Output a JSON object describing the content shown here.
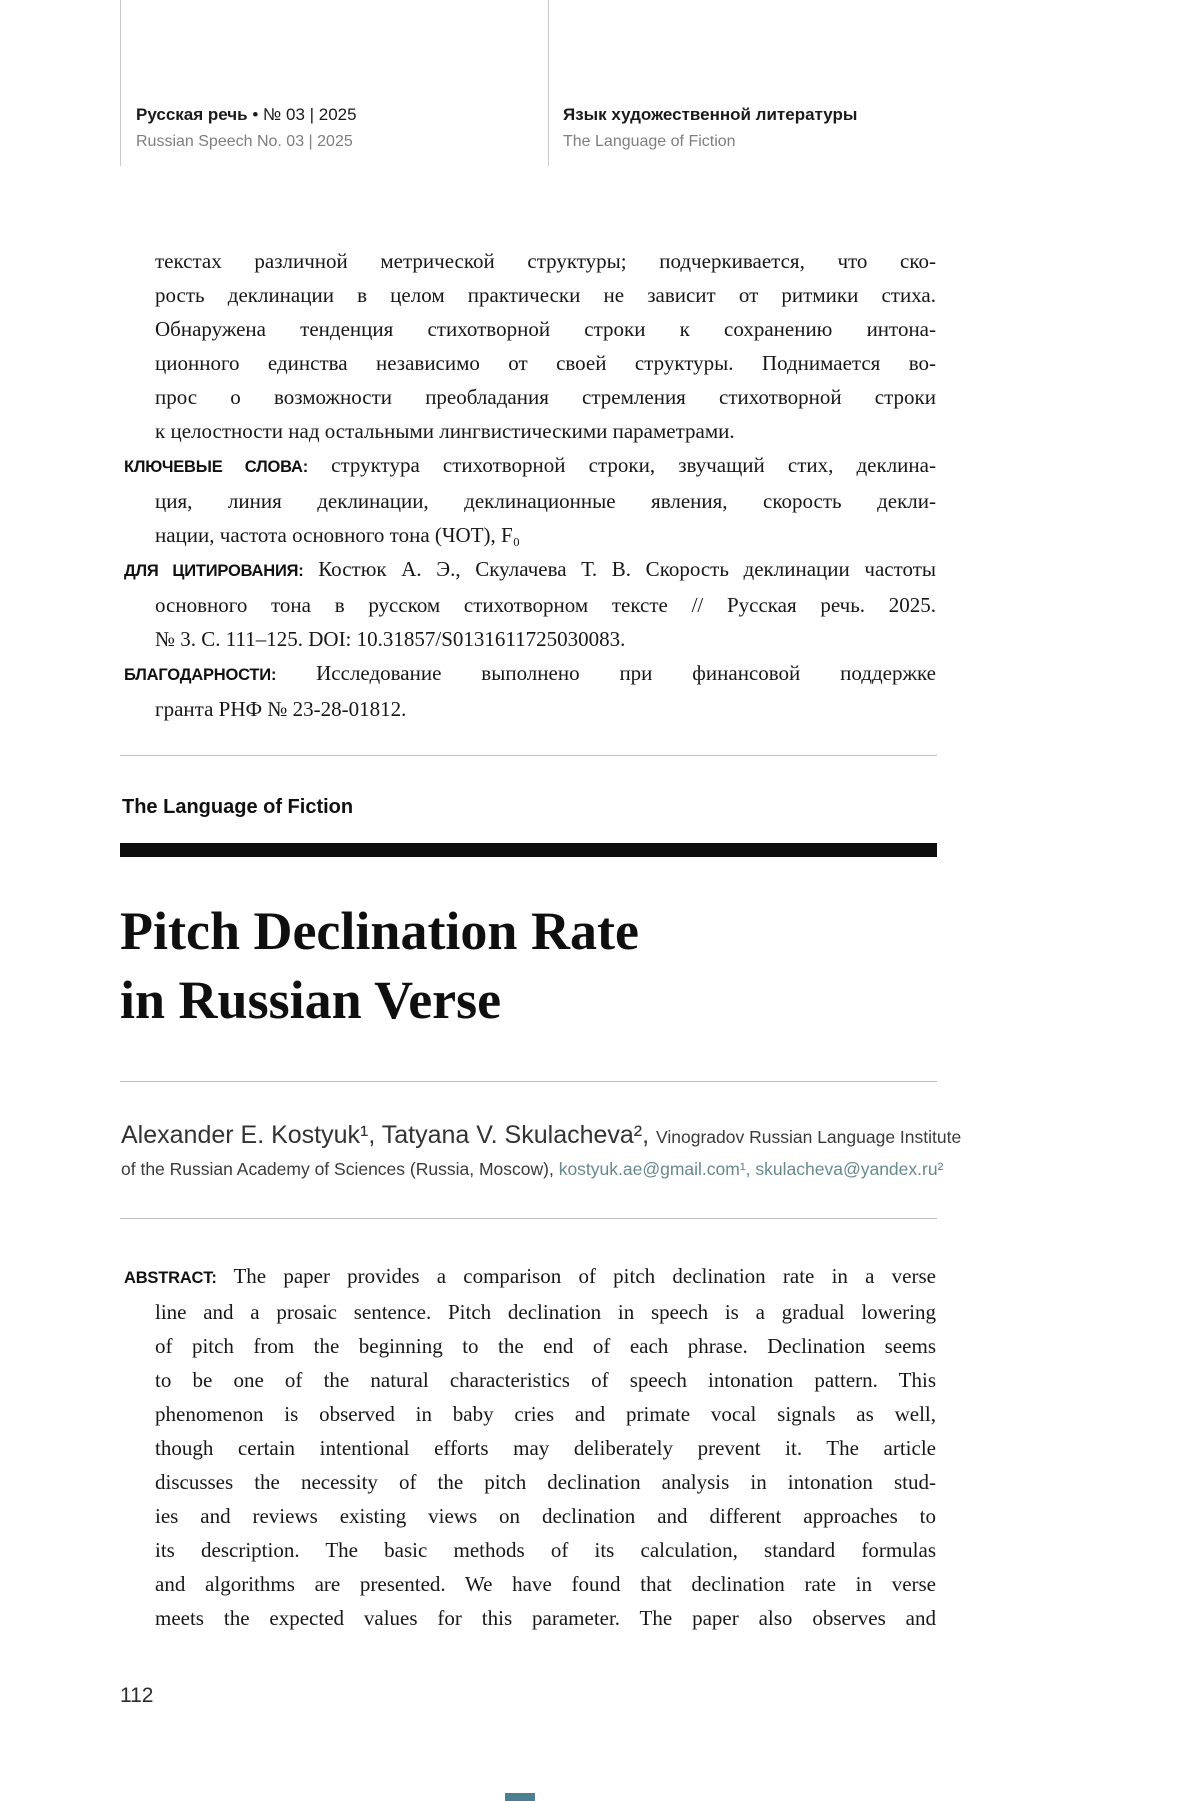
{
  "header": {
    "left": {
      "title_bold": "Русская речь",
      "title_rest": " • № 03 | 2025",
      "subtitle": "Russian Speech No. 03 | 2025"
    },
    "right": {
      "title": "Язык художественной литературы",
      "subtitle": "The Language of Fiction"
    }
  },
  "front_matter": {
    "continuation": {
      "label": "",
      "lines": [
        "текстах различной метрической структуры; подчеркивается, что ско-",
        "рость деклинации в целом практически не зависит от ритмики стиха.",
        "Обнаружена тенденция стихотворной строки к сохранению интона-",
        "ционного единства независимо от своей структуры. Поднимается во-",
        "прос о возможности преобладания стремления стихотворной строки",
        "к целостности над остальными лингвистическими параметрами."
      ]
    },
    "keywords": {
      "label": "КЛЮЧЕВЫЕ СЛОВА:",
      "lines": [
        "структура стихотворной строки, звучащий стих, деклина-",
        "ция, линия деклинации, деклинационные явления, скорость декли-",
        "нации, частота основного тона (ЧОТ), F₀"
      ]
    },
    "citation": {
      "label": "ДЛЯ ЦИТИРОВАНИЯ:",
      "lines": [
        "Костюк А. Э., Скулачева Т. В. Скорость деклинации частоты",
        "основного тона в русском стихотворном тексте // Русская речь. 2025.",
        "№ 3. С. 111–125. DOI: 10.31857/S0131611725030083."
      ]
    },
    "acknowledgments": {
      "label": "БЛАГОДАРНОСТИ:",
      "lines": [
        "Исследование выполнено при финансовой поддержке",
        "гранта РНФ № 23-28-01812."
      ]
    }
  },
  "section": {
    "heading": "The Language of Fiction"
  },
  "article": {
    "title_lines": [
      "Pitch Declination Rate",
      "in Russian Verse"
    ],
    "authors": {
      "names": "Alexander E. Kostyuk¹, Tatyana V. Skulacheva², ",
      "affiliation_line1": "Vinogradov Russian Language Institute",
      "affiliation_line2": "of the Russian Academy of Sciences (Russia, Moscow), ",
      "emails": "kostyuk.ae@gmail.com¹, skulacheva@yandex.ru²"
    },
    "abstract": {
      "label": "ABSTRACT:",
      "lines": [
        "The paper provides a comparison of pitch declination rate in a verse",
        "line and a prosaic sentence. Pitch declination in speech is a gradual lowering",
        "of pitch from the beginning to the end of each phrase. Declination seems",
        "to be one of the natural characteristics of speech intonation pattern. This",
        "phenomenon is observed in baby cries and primate vocal signals as well,",
        "though certain intentional efforts may deliberately prevent it. The article",
        "discusses the necessity of the pitch declination analysis in intonation stud-",
        "ies and reviews existing views on declination and different approaches to",
        "its description. The basic methods of its calculation, standard formulas",
        "and algorithms are presented. We have found that declination rate in verse",
        "meets the expected values for this parameter. The paper also observes and"
      ]
    }
  },
  "page": {
    "number": "112"
  },
  "colors": {
    "email_link": "#67898c",
    "section_bar": "#0d0d0d"
  }
}
